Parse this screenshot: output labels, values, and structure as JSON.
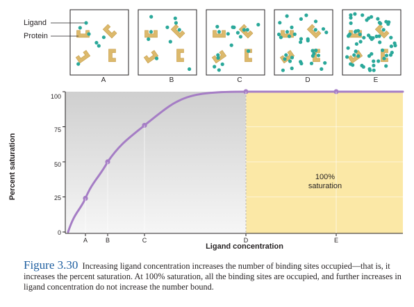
{
  "legend": {
    "ligand_label": "Ligand",
    "protein_label": "Protein"
  },
  "panels": [
    {
      "label": "A",
      "ligands": 5
    },
    {
      "label": "B",
      "ligands": 8
    },
    {
      "label": "C",
      "ligands": 14
    },
    {
      "label": "D",
      "ligands": 30
    },
    {
      "label": "E",
      "ligands": 55
    }
  ],
  "colors": {
    "ligand": "#2aa89a",
    "protein": "#dcb96c",
    "curve": "#a57dc5",
    "saturation_region": "#fbe8a6",
    "caption_figure": "#1b5c9e"
  },
  "chart_data": {
    "type": "line",
    "x": [
      "0",
      "A",
      "B",
      "C",
      "D",
      "E",
      "max"
    ],
    "y": [
      0,
      24,
      50,
      76,
      100,
      100,
      100
    ],
    "marked_points": [
      "A",
      "B",
      "C",
      "D",
      "E"
    ],
    "xlabel": "Ligand concentration",
    "ylabel": "Percent saturation",
    "yticks": [
      "0",
      "25",
      "50",
      "75",
      "100"
    ],
    "xticks": [
      "A",
      "B",
      "C",
      "D",
      "E"
    ],
    "ylim": [
      0,
      100
    ],
    "region_note": {
      "line1": "100%",
      "line2": "saturation"
    }
  },
  "caption": {
    "figure_number": "Figure 3.30",
    "text": "Increasing ligand concentration increases the number of binding sites occupied—that is, it increases the percent saturation. At 100% saturation, all the binding sites are occupied, and further increases in ligand concentration do not increase the number bound."
  }
}
